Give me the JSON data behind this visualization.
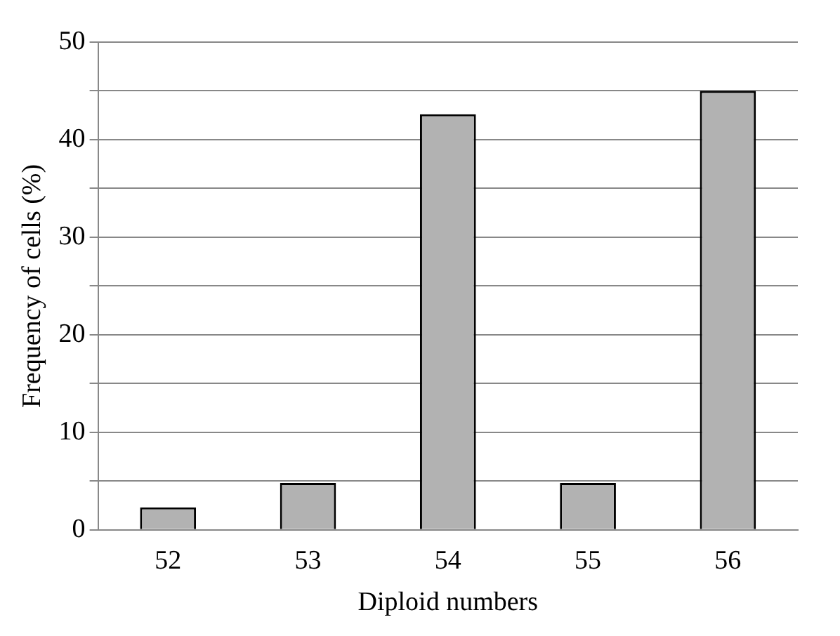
{
  "chart_data": {
    "type": "bar",
    "xlabel": "Diploid numbers",
    "ylabel": "Frequency of cells (%)",
    "categories": [
      "52",
      "53",
      "54",
      "55",
      "56"
    ],
    "values": [
      2.3,
      4.8,
      42.6,
      4.8,
      45.0
    ],
    "color": "#b2b2b2",
    "ylim": [
      0,
      50
    ],
    "yticks": [
      0,
      {
        "value": 5,
        "label": null
      },
      10,
      {
        "value": 15,
        "label": null
      },
      20,
      {
        "value": 25,
        "label": null
      },
      30,
      {
        "value": 35,
        "label": null
      },
      40,
      {
        "value": 45,
        "label": null
      },
      50
    ],
    "grid": "y",
    "legend": false
  }
}
